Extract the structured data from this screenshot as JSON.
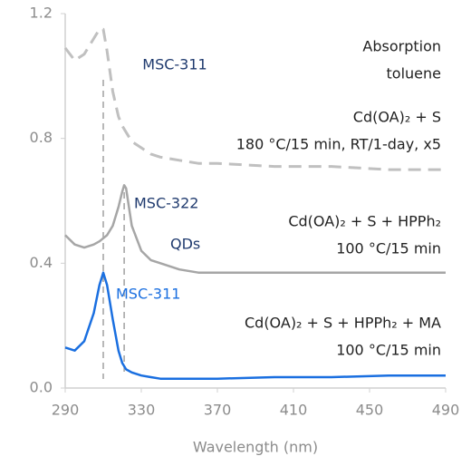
{
  "chart_data": {
    "type": "line",
    "x_label": "Wavelength (nm)",
    "xlim": [
      290,
      490
    ],
    "xticks": [
      290,
      330,
      370,
      410,
      450,
      490
    ],
    "ylim": [
      0,
      1.2
    ],
    "yticks": [
      {
        "value": 0,
        "label": "0.0"
      },
      0.4,
      0.8,
      1.2
    ],
    "x": [
      290,
      295,
      300,
      305,
      308,
      310,
      312,
      315,
      318,
      320,
      321,
      322,
      325,
      330,
      335,
      340,
      350,
      360,
      370,
      400,
      430,
      460,
      490
    ],
    "series": [
      {
        "color": "#c0c0c0",
        "dashed": true,
        "values": [
          1.09,
          1.05,
          1.07,
          1.12,
          1.15,
          1.15,
          1.08,
          0.95,
          0.87,
          0.84,
          0.83,
          0.82,
          0.79,
          0.77,
          0.75,
          0.74,
          0.73,
          0.72,
          0.72,
          0.71,
          0.71,
          0.7,
          0.7
        ]
      },
      {
        "color": "#a6a6a6",
        "dashed": false,
        "values": [
          0.49,
          0.46,
          0.45,
          0.46,
          0.47,
          0.48,
          0.49,
          0.52,
          0.58,
          0.63,
          0.65,
          0.64,
          0.52,
          0.44,
          0.41,
          0.4,
          0.38,
          0.37,
          0.37,
          0.37,
          0.37,
          0.37,
          0.37
        ]
      },
      {
        "color": "#1a6fe0",
        "dashed": false,
        "values": [
          0.13,
          0.12,
          0.15,
          0.24,
          0.33,
          0.37,
          0.33,
          0.22,
          0.12,
          0.08,
          0.07,
          0.06,
          0.05,
          0.04,
          0.035,
          0.03,
          0.03,
          0.03,
          0.03,
          0.035,
          0.035,
          0.04,
          0.04
        ]
      }
    ],
    "vlines": [
      310,
      321
    ],
    "annotations": [
      {
        "text": "MSC-311",
        "color": "#1f3a6e"
      },
      {
        "text": "Absorption",
        "color": "#222222"
      },
      {
        "text": "toluene",
        "color": "#222222"
      },
      {
        "text": "Cd(OA)₂ + S",
        "color": "#222222"
      },
      {
        "text": "180 °C/15 min, RT/1-day, x5",
        "color": "#222222"
      },
      {
        "text": "MSC-322",
        "color": "#1f3a6e"
      },
      {
        "text": "QDs",
        "color": "#1f3a6e"
      },
      {
        "text": "Cd(OA)₂ + S + HPPh₂",
        "color": "#222222"
      },
      {
        "text": "100 °C/15 min",
        "color": "#222222"
      },
      {
        "text": "MSC-311",
        "color": "#1a6fe0"
      },
      {
        "text": "Cd(OA)₂ + S + HPPh₂ + MA",
        "color": "#222222"
      },
      {
        "text": "100 °C/15 min",
        "color": "#222222"
      }
    ]
  }
}
